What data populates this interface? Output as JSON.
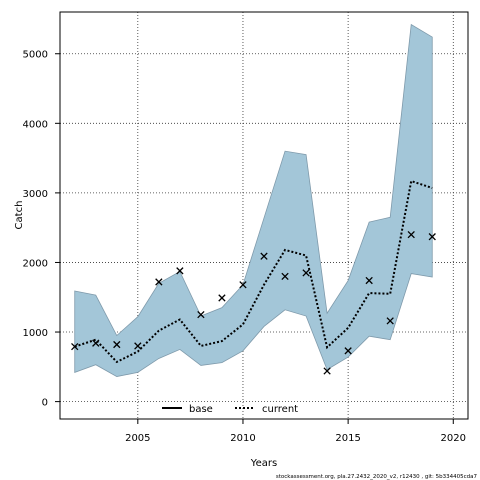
{
  "chart_data": {
    "type": "line",
    "title": "",
    "xlabel": "Years",
    "ylabel": "Catch",
    "xlim": [
      2001.3,
      2020.7
    ],
    "ylim": [
      -250,
      5600
    ],
    "x_ticks": [
      2005,
      2010,
      2015,
      2020
    ],
    "y_ticks": [
      0,
      1000,
      2000,
      3000,
      4000,
      5000
    ],
    "grid": true,
    "legend_position": "bottom-center",
    "colors": {
      "band_fill": "#a3c6d8",
      "band_stroke": "#7f9aab",
      "line": "#000000",
      "grid": "#333333"
    },
    "band": {
      "x": [
        2002,
        2003,
        2004,
        2005,
        2006,
        2007,
        2008,
        2009,
        2010,
        2011,
        2012,
        2013,
        2014,
        2015,
        2016,
        2017,
        2018,
        2019
      ],
      "lower": [
        420,
        530,
        360,
        420,
        620,
        750,
        520,
        560,
        730,
        1080,
        1320,
        1230,
        460,
        640,
        940,
        890,
        1840,
        1790
      ],
      "upper": [
        1590,
        1530,
        950,
        1220,
        1700,
        1870,
        1230,
        1350,
        1680,
        2640,
        3600,
        3550,
        1270,
        1740,
        2580,
        2650,
        5420,
        5240
      ]
    },
    "series": [
      {
        "name": "current",
        "style": "dotted",
        "x": [
          2002,
          2003,
          2004,
          2005,
          2006,
          2007,
          2008,
          2009,
          2010,
          2011,
          2012,
          2013,
          2014,
          2015,
          2016,
          2017,
          2018,
          2019
        ],
        "values": [
          790,
          890,
          570,
          720,
          1020,
          1180,
          800,
          870,
          1110,
          1680,
          2180,
          2100,
          780,
          1060,
          1560,
          1550,
          3170,
          3070
        ]
      },
      {
        "name": "observed",
        "style": "cross-marker",
        "x": [
          2002,
          2003,
          2004,
          2005,
          2006,
          2007,
          2008,
          2009,
          2010,
          2011,
          2012,
          2013,
          2014,
          2015,
          2016,
          2017,
          2018,
          2019
        ],
        "values": [
          790,
          840,
          820,
          800,
          1720,
          1880,
          1250,
          1490,
          1680,
          2090,
          1800,
          1850,
          440,
          730,
          1740,
          1160,
          2400,
          2370
        ]
      }
    ],
    "legend": [
      {
        "label": "base",
        "style": "solid"
      },
      {
        "label": "current",
        "style": "dotted"
      }
    ]
  },
  "footer": "stockassessment.org, pla.27.2432_2020_v2, r12430 , git: 5b334405cda7"
}
